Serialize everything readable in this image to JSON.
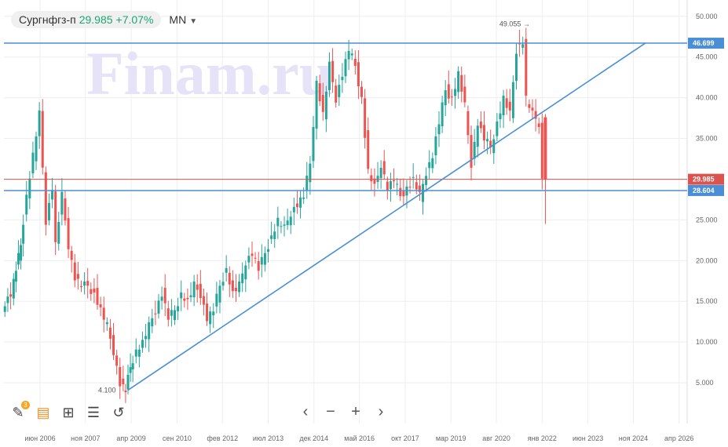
{
  "header": {
    "ticker": "Сургнфгз-п",
    "price": "29.985",
    "change": "+7.07%",
    "timeframe": "MN"
  },
  "watermark": "Finam.ru",
  "toolbar": {
    "badge_count": "3",
    "icons": [
      "pencil-icon",
      "notes-icon",
      "add-indicator-icon",
      "settings-sliders-icon",
      "undo-icon"
    ]
  },
  "nav": {
    "prev": "‹",
    "zoom_out": "−",
    "zoom_in": "+",
    "next": "›"
  },
  "colors": {
    "up": "#26a69a",
    "down": "#ef5350",
    "trendline": "#4a8fd6",
    "price_line": "#d9534f",
    "grid": "#eeeeee"
  },
  "chart_data": {
    "type": "candlestick",
    "interval": "monthly",
    "ylim": [
      0,
      52
    ],
    "yticks": [
      "5.000",
      "10.000",
      "15.000",
      "20.000",
      "25.000",
      "30.000",
      "35.000",
      "40.000",
      "45.000",
      "50.000"
    ],
    "yticks_values": [
      5,
      10,
      15,
      20,
      25,
      30,
      35,
      40,
      45,
      50
    ],
    "xticks": [
      "июн 2006",
      "ноя 2007",
      "апр 2009",
      "сен 2010",
      "фев 2012",
      "июл 2013",
      "дек 2014",
      "май 2016",
      "окт 2017",
      "мар 2019",
      "авг 2020",
      "янв 2022",
      "июн 2023",
      "ноя 2024",
      "апр 2026"
    ],
    "xticks_values": [
      2006.42,
      2007.83,
      2009.25,
      2010.67,
      2012.08,
      2013.5,
      2014.92,
      2016.33,
      2017.75,
      2019.17,
      2020.58,
      2022.0,
      2023.42,
      2024.83,
      2026.25
    ],
    "x_range": [
      2005.3,
      2026.5
    ],
    "series_points": [
      [
        2005.33,
        14.5
      ],
      [
        2005.6,
        16
      ],
      [
        2005.9,
        22
      ],
      [
        2006.1,
        28
      ],
      [
        2006.3,
        33
      ],
      [
        2006.5,
        38
      ],
      [
        2006.7,
        25
      ],
      [
        2006.9,
        29
      ],
      [
        2007.0,
        22
      ],
      [
        2007.2,
        28
      ],
      [
        2007.4,
        22
      ],
      [
        2007.6,
        18
      ],
      [
        2007.8,
        17
      ],
      [
        2008.0,
        17
      ],
      [
        2008.2,
        16
      ],
      [
        2008.4,
        14
      ],
      [
        2008.6,
        12
      ],
      [
        2008.8,
        9
      ],
      [
        2009.0,
        5
      ],
      [
        2009.15,
        4.1
      ],
      [
        2009.3,
        7
      ],
      [
        2009.5,
        9
      ],
      [
        2009.7,
        10
      ],
      [
        2009.9,
        12
      ],
      [
        2010.1,
        14
      ],
      [
        2010.3,
        16
      ],
      [
        2010.5,
        13
      ],
      [
        2010.7,
        14
      ],
      [
        2010.9,
        16
      ],
      [
        2011.1,
        15
      ],
      [
        2011.3,
        17
      ],
      [
        2011.5,
        16
      ],
      [
        2011.7,
        13
      ],
      [
        2011.9,
        14
      ],
      [
        2012.1,
        17
      ],
      [
        2012.3,
        19
      ],
      [
        2012.5,
        16
      ],
      [
        2012.7,
        17
      ],
      [
        2012.9,
        20
      ],
      [
        2013.1,
        21
      ],
      [
        2013.3,
        19
      ],
      [
        2013.5,
        21
      ],
      [
        2013.7,
        23
      ],
      [
        2013.9,
        25
      ],
      [
        2014.1,
        24
      ],
      [
        2014.3,
        26
      ],
      [
        2014.5,
        27
      ],
      [
        2014.7,
        28
      ],
      [
        2014.9,
        32
      ],
      [
        2015.1,
        42
      ],
      [
        2015.3,
        38
      ],
      [
        2015.5,
        44
      ],
      [
        2015.7,
        40
      ],
      [
        2015.9,
        43
      ],
      [
        2016.1,
        46
      ],
      [
        2016.3,
        44
      ],
      [
        2016.5,
        40
      ],
      [
        2016.7,
        31
      ],
      [
        2016.9,
        29
      ],
      [
        2017.1,
        32
      ],
      [
        2017.3,
        29
      ],
      [
        2017.5,
        30
      ],
      [
        2017.7,
        28
      ],
      [
        2017.9,
        29
      ],
      [
        2018.1,
        30
      ],
      [
        2018.3,
        28
      ],
      [
        2018.5,
        31
      ],
      [
        2018.7,
        33
      ],
      [
        2018.9,
        37
      ],
      [
        2019.1,
        41
      ],
      [
        2019.3,
        40
      ],
      [
        2019.5,
        43
      ],
      [
        2019.7,
        39
      ],
      [
        2019.9,
        32
      ],
      [
        2020.1,
        37
      ],
      [
        2020.3,
        35
      ],
      [
        2020.5,
        34
      ],
      [
        2020.7,
        37
      ],
      [
        2020.9,
        40
      ],
      [
        2021.1,
        38
      ],
      [
        2021.3,
        46
      ],
      [
        2021.5,
        47
      ],
      [
        2021.6,
        40
      ],
      [
        2021.8,
        38
      ],
      [
        2022.0,
        37
      ],
      [
        2022.1,
        29.985
      ]
    ],
    "horizontal_levels": [
      {
        "label": "46.699",
        "value": 46.699,
        "color": "#4a8fd6"
      },
      {
        "label": "29.985",
        "value": 29.985,
        "color": "#d9534f"
      },
      {
        "label": "28.604",
        "value": 28.604,
        "color": "#4a8fd6"
      }
    ],
    "trendline": {
      "x": [
        2009.15,
        2025.2
      ],
      "y": [
        4.1,
        46.699
      ]
    },
    "annotations": [
      {
        "text": "49.055",
        "x": 2021.6,
        "y": 49.055
      },
      {
        "text": "4.100",
        "x": 2009.15,
        "y": 4.1
      }
    ]
  }
}
